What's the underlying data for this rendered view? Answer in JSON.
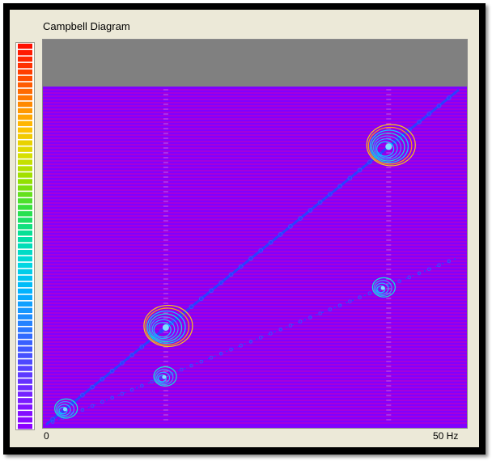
{
  "window": {
    "title": "Campbell Diagram"
  },
  "colorbar": {
    "colors": [
      "#8b00ff",
      "#7a1cff",
      "#5a3cff",
      "#3a5cff",
      "#1e8cff",
      "#00b4ff",
      "#00d8e0",
      "#00e0a0",
      "#30e040",
      "#90e000",
      "#d8e000",
      "#ffc000",
      "#ff8000",
      "#ff4000",
      "#ff1000"
    ]
  },
  "chart_data": {
    "type": "scatter",
    "title": "Campbell Diagram",
    "xlabel": "",
    "ylabel": "",
    "x_tick_labels": [
      "0",
      "50 Hz"
    ],
    "xlim": [
      0,
      50
    ],
    "grid": false,
    "series_orders": [
      {
        "slope": 1.0
      },
      {
        "slope": 0.5
      }
    ],
    "resonance_points": [
      {
        "order": 1,
        "x": 2.3,
        "y": 2.3
      },
      {
        "order": 1,
        "x": 14.5,
        "y": 14.5
      },
      {
        "order": 1,
        "x": 41.5,
        "y": 41.5
      },
      {
        "order": 2,
        "x": 14.3,
        "y": 7.1
      },
      {
        "order": 2,
        "x": 40.8,
        "y": 20.4
      }
    ],
    "colors": {
      "background": "#8000ff",
      "header": "#808080",
      "stripe": "#c000c0",
      "order_line": "#2a40ff"
    }
  }
}
